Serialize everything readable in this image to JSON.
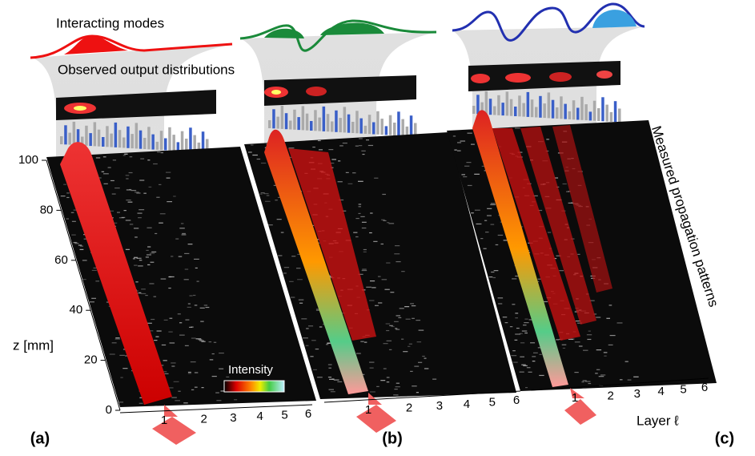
{
  "labels": {
    "interacting_modes": "Interacting modes",
    "observed_output": "Observed output distributions",
    "measured_patterns": "Measured propagation patterns",
    "intensity": "Intensity",
    "layer_axis": "Layer ℓ"
  },
  "z_axis": {
    "label": "z [mm]",
    "ticks": [
      "100",
      "80",
      "60",
      "40",
      "20",
      "0"
    ]
  },
  "panels": [
    {
      "label": "(a)",
      "layer_ticks": [
        "1",
        "2",
        "3",
        "4",
        "5",
        "6"
      ]
    },
    {
      "label": "(b)",
      "layer_ticks": [
        "1",
        "2",
        "3",
        "4",
        "5",
        "6"
      ]
    },
    {
      "label": "(c)",
      "layer_ticks": [
        "1",
        "2",
        "3",
        "4",
        "5",
        "6"
      ]
    }
  ]
}
